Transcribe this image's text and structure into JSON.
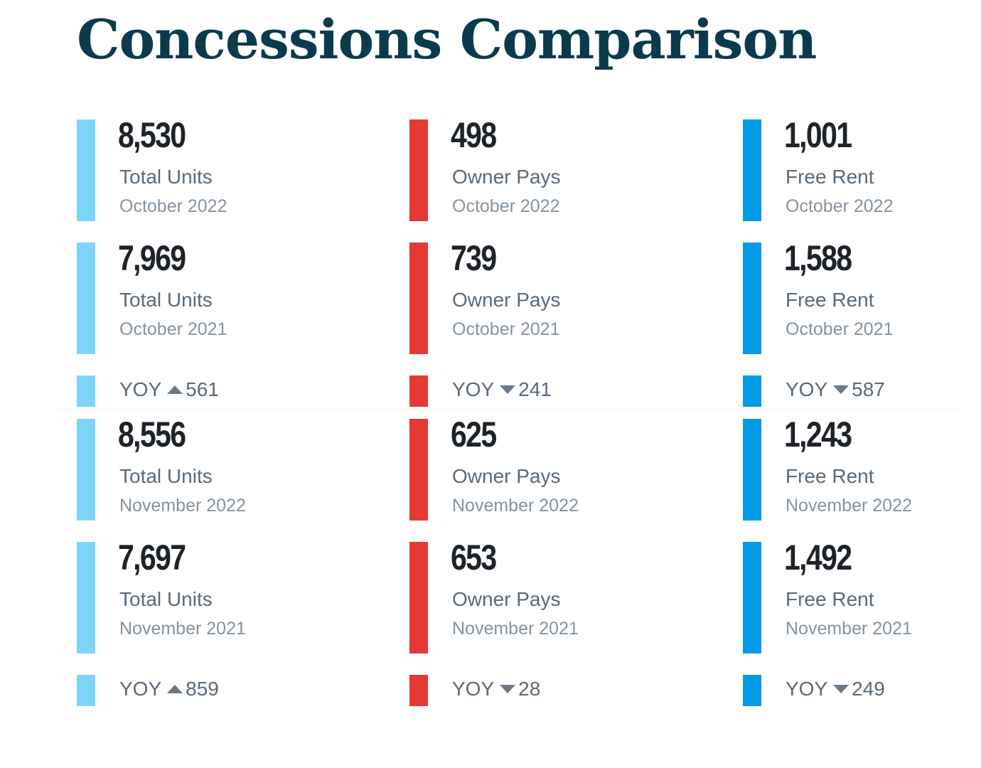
{
  "title": "Concessions Comparison",
  "colors": {
    "total_units": "#7fd4f9",
    "owner_pays": "#e53935",
    "free_rent": "#039be5"
  },
  "chart_data": [
    {
      "type": "table",
      "period_group": "October",
      "metrics": [
        {
          "category": "Total Units",
          "color_key": "total_units",
          "current": {
            "value": "8,530",
            "period": "October 2022"
          },
          "prior": {
            "value": "7,969",
            "period": "October 2021"
          },
          "yoy": {
            "label": "YOY",
            "direction": "up",
            "value": "561"
          }
        },
        {
          "category": "Owner Pays",
          "color_key": "owner_pays",
          "current": {
            "value": "498",
            "period": "October 2022"
          },
          "prior": {
            "value": "739",
            "period": "October 2021"
          },
          "yoy": {
            "label": "YOY",
            "direction": "down",
            "value": "241"
          }
        },
        {
          "category": "Free Rent",
          "color_key": "free_rent",
          "current": {
            "value": "1,001",
            "period": "October 2022"
          },
          "prior": {
            "value": "1,588",
            "period": "October 2021"
          },
          "yoy": {
            "label": "YOY",
            "direction": "down",
            "value": "587"
          }
        }
      ]
    },
    {
      "type": "table",
      "period_group": "November",
      "metrics": [
        {
          "category": "Total Units",
          "color_key": "total_units",
          "current": {
            "value": "8,556",
            "period": "November 2022"
          },
          "prior": {
            "value": "7,697",
            "period": "November 2021"
          },
          "yoy": {
            "label": "YOY",
            "direction": "up",
            "value": "859"
          }
        },
        {
          "category": "Owner Pays",
          "color_key": "owner_pays",
          "current": {
            "value": "625",
            "period": "November 2022"
          },
          "prior": {
            "value": "653",
            "period": "November 2021"
          },
          "yoy": {
            "label": "YOY",
            "direction": "down",
            "value": "28"
          }
        },
        {
          "category": "Free Rent",
          "color_key": "free_rent",
          "current": {
            "value": "1,243",
            "period": "November 2022"
          },
          "prior": {
            "value": "1,492",
            "period": "November 2021"
          },
          "yoy": {
            "label": "YOY",
            "direction": "down",
            "value": "249"
          }
        }
      ]
    }
  ]
}
